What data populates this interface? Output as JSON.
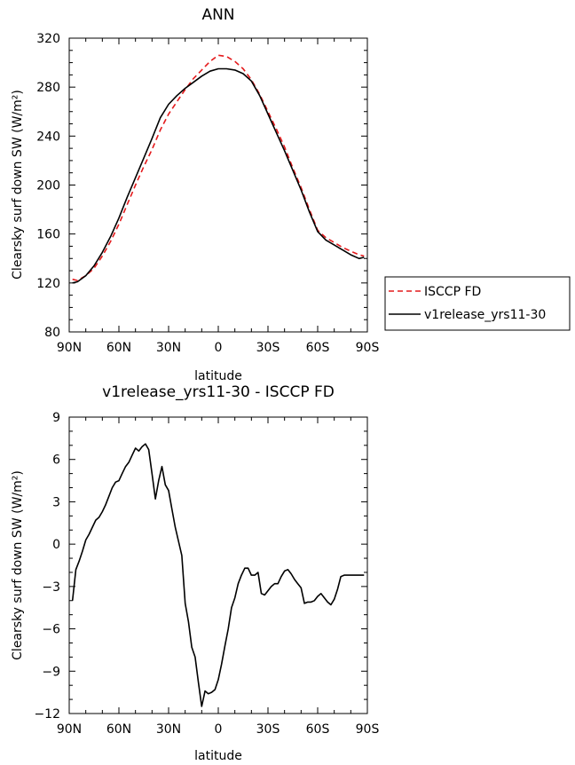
{
  "chart_data": [
    {
      "type": "line",
      "title": "ANN",
      "xlabel": "latitude",
      "ylabel": "Clearsky surf down SW (W/m²)",
      "xlim": [
        -90,
        90
      ],
      "ylim": [
        80,
        320
      ],
      "xticks": [
        -90,
        -60,
        -30,
        0,
        30,
        60,
        90
      ],
      "xtick_labels": [
        "90N",
        "60N",
        "30N",
        "0",
        "30S",
        "60S",
        "90S"
      ],
      "yticks": [
        80,
        120,
        160,
        200,
        240,
        280,
        320
      ],
      "ytick_labels": [
        "80",
        "120",
        "160",
        "200",
        "240",
        "280",
        "320"
      ],
      "legend": "right",
      "series": [
        {
          "name": "ISCCP FD",
          "color": "#e41a1c",
          "dash": true,
          "x": [
            -88,
            -85,
            -80,
            -75,
            -70,
            -65,
            -60,
            -55,
            -50,
            -45,
            -40,
            -35,
            -30,
            -25,
            -20,
            -15,
            -10,
            -5,
            0,
            5,
            10,
            15,
            20,
            25,
            30,
            35,
            40,
            45,
            50,
            55,
            60,
            65,
            70,
            75,
            80,
            85,
            88
          ],
          "y": [
            123,
            122,
            126,
            132,
            142,
            154,
            168,
            184,
            200,
            215,
            229,
            245,
            258,
            268,
            278,
            287,
            294,
            301,
            306,
            305,
            301,
            295,
            286,
            274,
            260,
            246,
            231,
            214,
            198,
            180,
            163,
            157,
            153,
            149,
            146,
            143,
            142
          ]
        },
        {
          "name": "v1release_yrs11-30",
          "color": "#000000",
          "dash": false,
          "x": [
            -88,
            -85,
            -80,
            -75,
            -70,
            -65,
            -60,
            -55,
            -50,
            -45,
            -40,
            -35,
            -30,
            -25,
            -20,
            -15,
            -10,
            -5,
            0,
            5,
            10,
            15,
            20,
            25,
            30,
            35,
            40,
            45,
            50,
            55,
            60,
            65,
            70,
            75,
            80,
            85,
            88
          ],
          "y": [
            120,
            121,
            126,
            134,
            145,
            158,
            173,
            190,
            206,
            222,
            238,
            255,
            266,
            273,
            279,
            284,
            289,
            293,
            295,
            295,
            294,
            291,
            285,
            273,
            258,
            243,
            228,
            212,
            196,
            178,
            162,
            155,
            151,
            147,
            143,
            140,
            141
          ]
        }
      ]
    },
    {
      "type": "line",
      "title": "v1release_yrs11-30 - ISCCP FD",
      "xlabel": "latitude",
      "ylabel": "Clearsky surf down SW (W/m²)",
      "xlim": [
        -90,
        90
      ],
      "ylim": [
        -12,
        9
      ],
      "xticks": [
        -90,
        -60,
        -30,
        0,
        30,
        60,
        90
      ],
      "xtick_labels": [
        "90N",
        "60N",
        "30N",
        "0",
        "30S",
        "60S",
        "90S"
      ],
      "yticks": [
        -12,
        -9,
        -6,
        -3,
        0,
        3,
        6,
        9
      ],
      "ytick_labels": [
        "−12",
        "−9",
        "−6",
        "−3",
        "0",
        "3",
        "6",
        "9"
      ],
      "series": [
        {
          "color": "#000000",
          "dash": false,
          "x": [
            -88,
            -86,
            -84,
            -82,
            -80,
            -78,
            -76,
            -74,
            -72,
            -70,
            -68,
            -66,
            -64,
            -62,
            -60,
            -58,
            -56,
            -54,
            -52,
            -50,
            -48,
            -46,
            -44,
            -42,
            -40,
            -38,
            -36,
            -34,
            -32,
            -30,
            -28,
            -26,
            -24,
            -22,
            -20,
            -18,
            -16,
            -14,
            -12,
            -10,
            -8,
            -6,
            -4,
            -2,
            0,
            2,
            4,
            6,
            8,
            10,
            12,
            14,
            16,
            18,
            20,
            22,
            24,
            26,
            28,
            30,
            32,
            34,
            36,
            38,
            40,
            42,
            44,
            46,
            48,
            50,
            52,
            54,
            56,
            58,
            60,
            62,
            64,
            66,
            68,
            70,
            72,
            74,
            76,
            78,
            80,
            82,
            84,
            86,
            88
          ],
          "y": [
            -4.0,
            -1.8,
            -1.2,
            -0.5,
            0.3,
            0.7,
            1.2,
            1.7,
            1.9,
            2.3,
            2.8,
            3.4,
            4.0,
            4.4,
            4.5,
            5.0,
            5.5,
            5.8,
            6.3,
            6.8,
            6.6,
            6.9,
            7.1,
            6.7,
            5.0,
            3.2,
            4.5,
            5.5,
            4.2,
            3.8,
            2.5,
            1.2,
            0.2,
            -0.8,
            -4.2,
            -5.5,
            -7.3,
            -8.0,
            -9.8,
            -11.5,
            -10.4,
            -10.6,
            -10.5,
            -10.3,
            -9.6,
            -8.5,
            -7.2,
            -6.0,
            -4.5,
            -3.8,
            -2.8,
            -2.2,
            -1.7,
            -1.7,
            -2.2,
            -2.2,
            -2.0,
            -3.5,
            -3.6,
            -3.3,
            -3.0,
            -2.8,
            -2.8,
            -2.3,
            -1.9,
            -1.8,
            -2.1,
            -2.5,
            -2.8,
            -3.1,
            -4.2,
            -4.1,
            -4.1,
            -4.0,
            -3.7,
            -3.5,
            -3.8,
            -4.1,
            -4.3,
            -3.9,
            -3.2,
            -2.3,
            -2.2,
            -2.2,
            -2.2,
            -2.2,
            -2.2,
            -2.2,
            -2.2
          ]
        }
      ]
    }
  ]
}
